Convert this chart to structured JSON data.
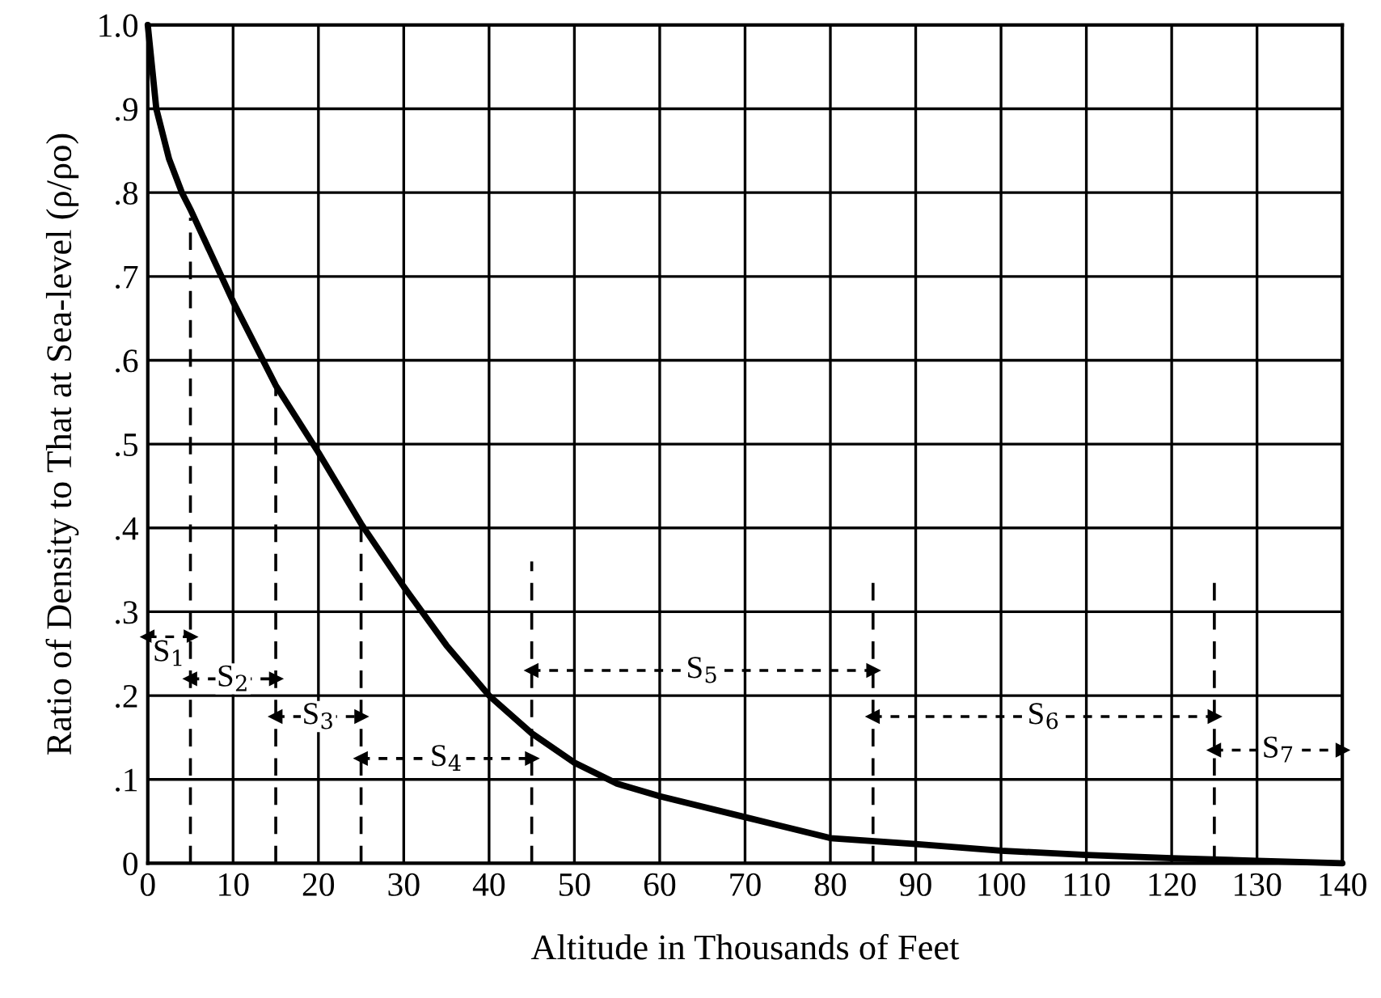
{
  "chart_data": {
    "type": "line",
    "xlabel": "Altitude in Thousands of Feet",
    "ylabel": "Ratio of Density to That at Sea-level (ρ/ρo)",
    "xlim": [
      0,
      140
    ],
    "xticks": [
      0,
      10,
      20,
      30,
      40,
      50,
      60,
      70,
      80,
      90,
      100,
      110,
      120,
      130,
      140
    ],
    "ylim": [
      0,
      1.0
    ],
    "yticks": [
      0,
      {
        "value": 0.1,
        "label": ".1"
      },
      {
        "value": 0.2,
        "label": ".2"
      },
      {
        "value": 0.3,
        "label": ".3"
      },
      {
        "value": 0.4,
        "label": ".4"
      },
      {
        "value": 0.5,
        "label": ".5"
      },
      {
        "value": 0.6,
        "label": ".6"
      },
      {
        "value": 0.7,
        "label": ".7"
      },
      {
        "value": 0.8,
        "label": ".8"
      },
      {
        "value": 0.9,
        "label": ".9"
      },
      {
        "value": 1.0,
        "label": "1.0"
      }
    ],
    "grid": true,
    "legend": false,
    "series": [
      {
        "color": "#000000",
        "line_style": "solid",
        "x": [
          0,
          1,
          2.5,
          4,
          5,
          10,
          15,
          20,
          25,
          30,
          35,
          40,
          45,
          50,
          55,
          60,
          70,
          80,
          90,
          100,
          110,
          120,
          130,
          140
        ],
        "values": [
          1.0,
          0.9,
          0.84,
          0.8,
          0.78,
          0.67,
          0.57,
          0.49,
          0.405,
          0.33,
          0.26,
          0.2,
          0.155,
          0.12,
          0.095,
          0.08,
          0.055,
          0.03,
          0.023,
          0.015,
          0.01,
          0.006,
          0.003,
          0
        ]
      },
      {
        "color": "#000000",
        "line_style": "dashed",
        "x": [
          5,
          5
        ],
        "values": [
          0,
          0.77
        ]
      },
      {
        "color": "#000000",
        "line_style": "dashed",
        "x": [
          15,
          15
        ],
        "values": [
          0,
          0.57
        ]
      },
      {
        "color": "#000000",
        "line_style": "dashed",
        "x": [
          25,
          25
        ],
        "values": [
          0,
          0.41
        ]
      },
      {
        "color": "#000000",
        "line_style": "dashed",
        "x": [
          45,
          45
        ],
        "values": [
          0,
          0.36
        ]
      },
      {
        "color": "#000000",
        "line_style": "dashed",
        "x": [
          85,
          85
        ],
        "values": [
          0,
          0.34
        ]
      },
      {
        "color": "#000000",
        "line_style": "dashed",
        "x": [
          125,
          125
        ],
        "values": [
          0,
          0.34
        ]
      },
      {
        "color": "#000000",
        "line_style": "dotted",
        "marker": "triangle",
        "x": [
          0,
          5
        ],
        "values": [
          0.27,
          0.27
        ]
      },
      {
        "color": "#000000",
        "line_style": "dotted",
        "marker": "triangle",
        "x": [
          5,
          15
        ],
        "values": [
          0.22,
          0.22
        ]
      },
      {
        "color": "#000000",
        "line_style": "dotted",
        "marker": "triangle",
        "x": [
          15,
          25
        ],
        "values": [
          0.175,
          0.175
        ]
      },
      {
        "color": "#000000",
        "line_style": "dotted",
        "marker": "triangle",
        "x": [
          25,
          45
        ],
        "values": [
          0.125,
          0.125
        ]
      },
      {
        "color": "#000000",
        "line_style": "dotted",
        "marker": "triangle",
        "x": [
          45,
          85
        ],
        "values": [
          0.23,
          0.23
        ]
      },
      {
        "color": "#000000",
        "line_style": "dotted",
        "marker": "triangle",
        "x": [
          85,
          125
        ],
        "values": [
          0.175,
          0.175
        ]
      },
      {
        "color": "#000000",
        "line_style": "dotted",
        "marker": "triangle",
        "x": [
          125,
          140
        ],
        "values": [
          0.135,
          0.135
        ]
      }
    ],
    "annotations": [
      {
        "text": "S$_{1}$",
        "x": 2.5,
        "y": 0.25
      },
      {
        "text": "S$_{2}$",
        "x": 10,
        "y": 0.22
      },
      {
        "text": "S$_{3}$",
        "x": 20,
        "y": 0.175
      },
      {
        "text": "S$_{4}$",
        "x": 35,
        "y": 0.125
      },
      {
        "text": "S$_{5}$",
        "x": 65,
        "y": 0.23
      },
      {
        "text": "S$_{6}$",
        "x": 105,
        "y": 0.175
      },
      {
        "text": "S$_{7}$",
        "x": 132.5,
        "y": 0.135
      }
    ]
  }
}
